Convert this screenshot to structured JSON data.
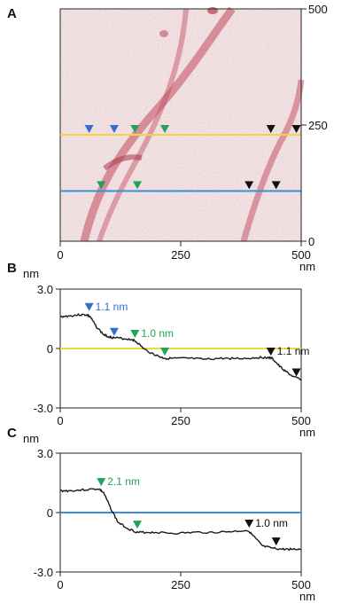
{
  "panel_a": {
    "label": "A",
    "y_ticks": [
      "500",
      "250",
      "0"
    ],
    "x_ticks": [
      "0",
      "250",
      "500"
    ],
    "x_unit": "nm",
    "line_colors": {
      "yellow": "#f2d640",
      "blue": "#3a8fd8"
    },
    "marker_colors": {
      "blue": "#2f6fd0",
      "green": "#22a35a",
      "black": "#111111"
    },
    "markers_yellow_line_nm": [
      {
        "x": 60,
        "color": "blue"
      },
      {
        "x": 112,
        "color": "blue"
      },
      {
        "x": 155,
        "color": "green"
      },
      {
        "x": 217,
        "color": "green"
      },
      {
        "x": 437,
        "color": "black"
      },
      {
        "x": 490,
        "color": "black"
      }
    ],
    "markers_blue_line_nm": [
      {
        "x": 85,
        "color": "green"
      },
      {
        "x": 160,
        "color": "green"
      },
      {
        "x": 392,
        "color": "black"
      },
      {
        "x": 448,
        "color": "black"
      }
    ]
  },
  "chart_data": [
    {
      "type": "line",
      "panel": "B",
      "xlabel": "nm",
      "ylabel": "nm",
      "xlim": [
        0,
        500
      ],
      "ylim": [
        -3.0,
        3.0
      ],
      "x_ticks": [
        "0",
        "250",
        "500"
      ],
      "y_ticks": [
        "3.0",
        "0",
        "-3.0"
      ],
      "reference_line": {
        "y": 0,
        "color": "#f2d640"
      },
      "profile_color": "#1a1a1a",
      "x": [
        0,
        20,
        40,
        55,
        62,
        75,
        90,
        100,
        110,
        130,
        150,
        160,
        175,
        195,
        210,
        220,
        240,
        270,
        300,
        330,
        360,
        390,
        410,
        430,
        440,
        455,
        470,
        485,
        500
      ],
      "y": [
        1.6,
        1.65,
        1.7,
        1.7,
        1.6,
        1.1,
        0.7,
        0.6,
        0.55,
        0.5,
        0.45,
        0.3,
        -0.05,
        -0.3,
        -0.45,
        -0.5,
        -0.5,
        -0.5,
        -0.55,
        -0.5,
        -0.5,
        -0.5,
        -0.45,
        -0.45,
        -0.5,
        -0.9,
        -1.2,
        -1.45,
        -1.55
      ],
      "annotations": [
        {
          "text": "1.1 nm",
          "x": 60,
          "y": 1.8,
          "color": "#2f6fd0",
          "marker_color": "#2f6fd0"
        },
        {
          "text": "",
          "x": 112,
          "y": 0.55,
          "color": "#2f6fd0",
          "marker_color": "#2f6fd0"
        },
        {
          "text": "1.0 nm",
          "x": 155,
          "y": 0.45,
          "color": "#22a35a",
          "marker_color": "#22a35a"
        },
        {
          "text": "",
          "x": 217,
          "y": -0.45,
          "color": "#22a35a",
          "marker_color": "#22a35a"
        },
        {
          "text": "1.1 nm",
          "x": 437,
          "y": -0.45,
          "color": "#111111",
          "marker_color": "#111111"
        },
        {
          "text": "",
          "x": 490,
          "y": -1.5,
          "color": "#111111",
          "marker_color": "#111111"
        }
      ]
    },
    {
      "type": "line",
      "panel": "C",
      "xlabel": "nm",
      "ylabel": "nm",
      "xlim": [
        0,
        500
      ],
      "ylim": [
        -3.0,
        3.0
      ],
      "x_ticks": [
        "0",
        "250",
        "500"
      ],
      "y_ticks": [
        "3.0",
        "0",
        "-3.0"
      ],
      "reference_line": {
        "y": 0,
        "color": "#3a8fd8"
      },
      "profile_color": "#1a1a1a",
      "x": [
        0,
        20,
        50,
        80,
        90,
        105,
        120,
        140,
        160,
        175,
        200,
        240,
        280,
        320,
        360,
        390,
        405,
        420,
        440,
        460,
        480,
        500
      ],
      "y": [
        1.1,
        1.1,
        1.15,
        1.2,
        1.0,
        0.2,
        -0.5,
        -0.8,
        -1.0,
        -1.0,
        -1.0,
        -1.05,
        -1.0,
        -1.0,
        -0.95,
        -0.9,
        -1.3,
        -1.7,
        -1.8,
        -1.85,
        -1.85,
        -1.85
      ],
      "annotations": [
        {
          "text": "2.1 nm",
          "x": 85,
          "y": 1.25,
          "color": "#22a35a",
          "marker_color": "#22a35a"
        },
        {
          "text": "",
          "x": 160,
          "y": -0.9,
          "color": "#22a35a",
          "marker_color": "#22a35a"
        },
        {
          "text": "1.0 nm",
          "x": 392,
          "y": -0.85,
          "color": "#111111",
          "marker_color": "#111111"
        },
        {
          "text": "",
          "x": 448,
          "y": -1.75,
          "color": "#111111",
          "marker_color": "#111111"
        }
      ]
    }
  ]
}
